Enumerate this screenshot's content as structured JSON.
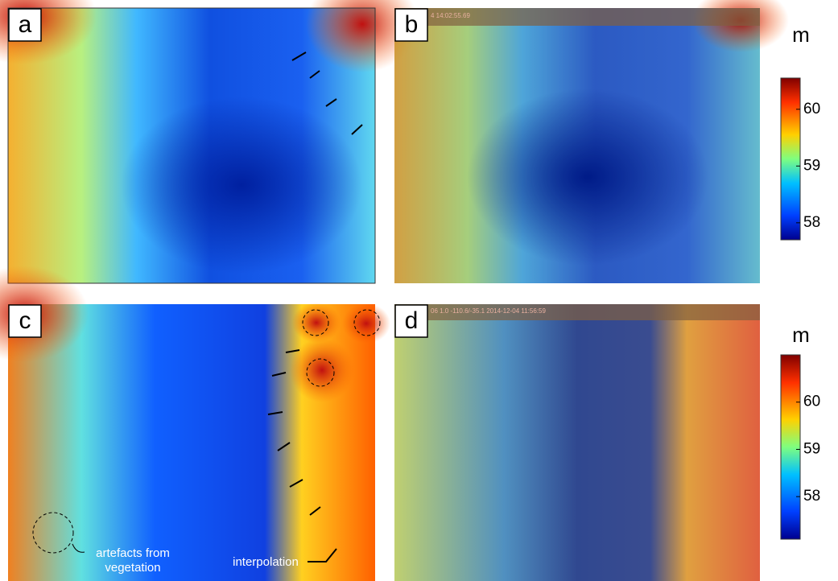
{
  "panels": [
    {
      "label": "a"
    },
    {
      "label": "b",
      "timestamp": "4 14:02:55.69"
    },
    {
      "label": "c",
      "annotations": [
        "artefacts from",
        "vegetation",
        "interpolation"
      ]
    },
    {
      "label": "d",
      "timestamp": "06 1.0 -110.6/-35.1 2014-12-04 11:56:59"
    }
  ],
  "colorbars": [
    {
      "unit": "m",
      "lim": [
        57.7,
        60.55
      ],
      "ticks": [
        58,
        59,
        60
      ]
    },
    {
      "unit": "m",
      "lim": [
        57.1,
        61.0
      ],
      "ticks": [
        58,
        59,
        60
      ]
    }
  ]
}
